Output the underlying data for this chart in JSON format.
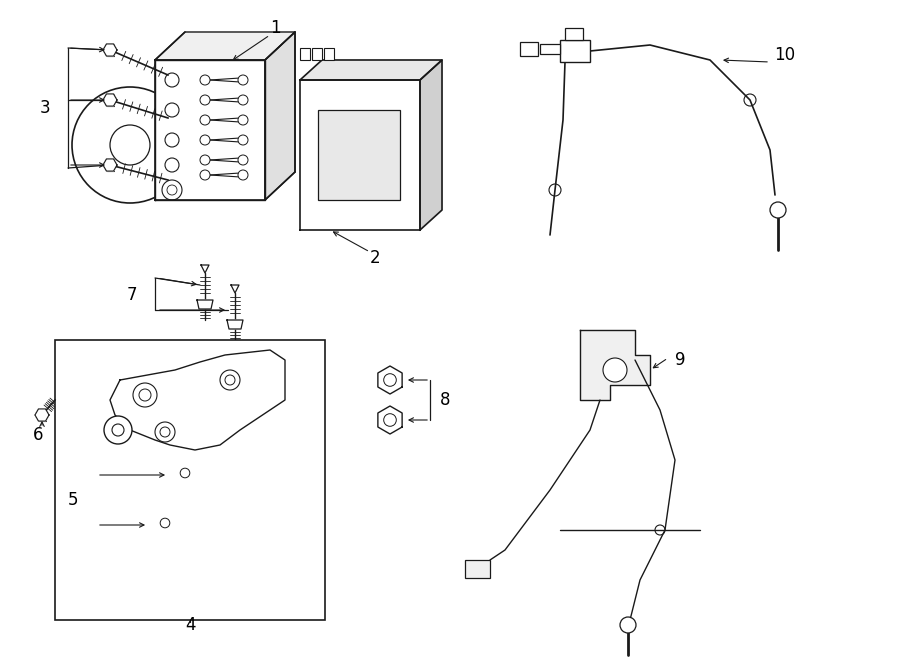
{
  "title": "",
  "bg_color": "#ffffff",
  "lc": "#1a1a1a",
  "lw": 1.0,
  "figsize": [
    9.0,
    6.61
  ],
  "dpi": 100,
  "xlim": [
    0,
    900
  ],
  "ylim": [
    0,
    661
  ]
}
